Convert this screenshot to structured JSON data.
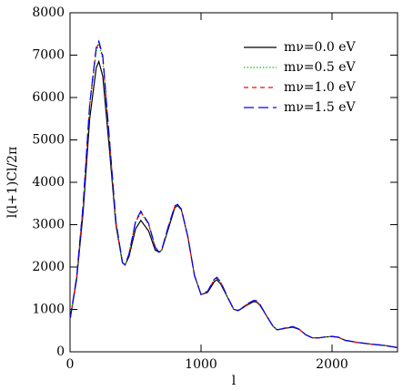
{
  "chart_data": {
    "type": "line",
    "xlabel": "l",
    "ylabel": "l(l+1)Cl/2π",
    "xlim": [
      0,
      2500
    ],
    "ylim": [
      0,
      8000
    ],
    "xticks": [
      0,
      1000,
      2000
    ],
    "yticks": [
      0,
      1000,
      2000,
      3000,
      4000,
      5000,
      6000,
      7000,
      8000
    ],
    "legend": "upper right",
    "x": [
      2,
      50,
      100,
      150,
      200,
      220,
      250,
      300,
      350,
      400,
      420,
      450,
      500,
      540,
      600,
      650,
      680,
      700,
      750,
      800,
      820,
      850,
      900,
      950,
      1000,
      1050,
      1100,
      1120,
      1150,
      1200,
      1250,
      1280,
      1300,
      1350,
      1400,
      1420,
      1450,
      1500,
      1550,
      1580,
      1600,
      1650,
      1700,
      1750,
      1800,
      1850,
      1900,
      1950,
      2000,
      2050,
      2100,
      2200,
      2300,
      2400,
      2500
    ],
    "series": [
      {
        "name": "mν=0.0 eV",
        "color": "#000000",
        "dash": "solid",
        "values": [
          800,
          1700,
          3300,
          5500,
          6700,
          6850,
          6500,
          4800,
          3000,
          2100,
          2050,
          2250,
          2900,
          3100,
          2850,
          2400,
          2350,
          2400,
          2900,
          3400,
          3450,
          3350,
          2700,
          1800,
          1350,
          1400,
          1650,
          1700,
          1600,
          1300,
          1000,
          980,
          1000,
          1100,
          1180,
          1180,
          1100,
          850,
          600,
          520,
          530,
          560,
          580,
          530,
          400,
          330,
          330,
          350,
          360,
          340,
          270,
          220,
          180,
          150,
          100
        ]
      },
      {
        "name": "mν=0.5 eV",
        "color": "#00cc00",
        "dash": "dotted",
        "values": [
          800,
          1750,
          3450,
          5800,
          7100,
          7250,
          6900,
          5000,
          3050,
          2100,
          2050,
          2300,
          3050,
          3280,
          3000,
          2450,
          2350,
          2400,
          2950,
          3420,
          3460,
          3350,
          2700,
          1800,
          1350,
          1420,
          1700,
          1740,
          1630,
          1300,
          1000,
          970,
          1000,
          1120,
          1200,
          1200,
          1110,
          850,
          600,
          520,
          530,
          565,
          590,
          530,
          400,
          330,
          330,
          350,
          360,
          340,
          270,
          220,
          180,
          150,
          100
        ]
      },
      {
        "name": "mν=1.0 eV",
        "color": "#ff0000",
        "dash": "dashed",
        "values": [
          800,
          1750,
          3460,
          5830,
          7150,
          7300,
          6950,
          5020,
          3060,
          2100,
          2050,
          2300,
          3060,
          3300,
          3010,
          2460,
          2350,
          2400,
          2950,
          3430,
          3470,
          3360,
          2700,
          1800,
          1350,
          1420,
          1700,
          1750,
          1640,
          1300,
          1000,
          970,
          1000,
          1120,
          1200,
          1200,
          1110,
          850,
          600,
          520,
          530,
          565,
          590,
          530,
          400,
          330,
          330,
          350,
          360,
          340,
          270,
          220,
          180,
          150,
          100
        ]
      },
      {
        "name": "mν=1.5 eV",
        "color": "#0000ff",
        "dash": "longdash",
        "values": [
          800,
          1760,
          3470,
          5850,
          7180,
          7330,
          6980,
          5050,
          3080,
          2110,
          2050,
          2310,
          3080,
          3320,
          3030,
          2470,
          2350,
          2410,
          2960,
          3440,
          3480,
          3370,
          2710,
          1800,
          1350,
          1430,
          1710,
          1760,
          1650,
          1310,
          1000,
          970,
          1000,
          1130,
          1210,
          1210,
          1120,
          850,
          600,
          520,
          530,
          570,
          595,
          535,
          400,
          330,
          330,
          350,
          365,
          345,
          270,
          220,
          180,
          150,
          100
        ]
      }
    ]
  }
}
